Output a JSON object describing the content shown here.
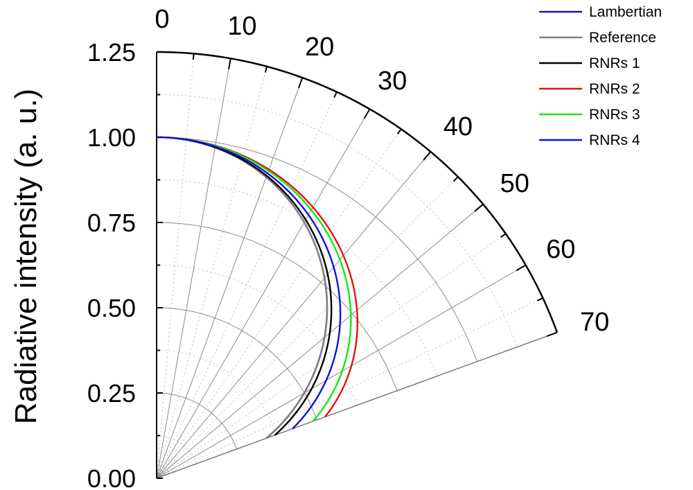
{
  "chart_data": {
    "type": "line",
    "coordinate_system": "polar",
    "angle_range_deg": [
      0,
      70
    ],
    "angle_ticks": [
      "0",
      "10",
      "20",
      "30",
      "40",
      "50",
      "60",
      "70"
    ],
    "radial_range": [
      0,
      1.25
    ],
    "radial_ticks": [
      "0.00",
      "0.25",
      "0.50",
      "0.75",
      "1.00",
      "1.25"
    ],
    "ylabel": "Radiative intensity (a. u.)",
    "xlabel": "",
    "grid": true,
    "legend_position": "top-right",
    "series": [
      {
        "name": "Lambertian",
        "color": "#1a1a8c",
        "exponent": 1.0,
        "angles_deg": [
          0,
          10,
          20,
          30,
          40,
          50,
          60,
          70
        ],
        "values": [
          1.0,
          0.985,
          0.94,
          0.866,
          0.766,
          0.643,
          0.5,
          0.342
        ]
      },
      {
        "name": "Reference",
        "color": "#808080",
        "exponent": 1.0,
        "angles_deg": [
          0,
          10,
          20,
          30,
          40,
          50,
          60,
          70
        ],
        "values": [
          1.0,
          0.985,
          0.94,
          0.866,
          0.766,
          0.643,
          0.5,
          0.342
        ]
      },
      {
        "name": "RNRs 1",
        "color": "#000000",
        "exponent": 0.93,
        "angles_deg": [
          0,
          10,
          20,
          30,
          40,
          50,
          60,
          70
        ],
        "values": [
          1.0,
          0.986,
          0.944,
          0.875,
          0.78,
          0.663,
          0.525,
          0.369
        ]
      },
      {
        "name": "RNRs 2",
        "color": "#e81010",
        "exponent": 0.6,
        "angles_deg": [
          0,
          10,
          20,
          30,
          40,
          50,
          60,
          70
        ],
        "values": [
          1.0,
          0.991,
          0.963,
          0.917,
          0.852,
          0.767,
          0.66,
          0.525
        ]
      },
      {
        "name": "RNRs 3",
        "color": "#19e619",
        "exponent": 0.67,
        "angles_deg": [
          0,
          10,
          20,
          30,
          40,
          50,
          60,
          70
        ],
        "values": [
          1.0,
          0.99,
          0.959,
          0.908,
          0.837,
          0.744,
          0.629,
          0.487
        ]
      },
      {
        "name": "RNRs 4",
        "color": "#1010dc",
        "exponent": 0.8,
        "angles_deg": [
          0,
          10,
          20,
          30,
          40,
          50,
          60,
          70
        ],
        "values": [
          1.0,
          0.988,
          0.952,
          0.891,
          0.808,
          0.702,
          0.574,
          0.423
        ]
      }
    ]
  }
}
